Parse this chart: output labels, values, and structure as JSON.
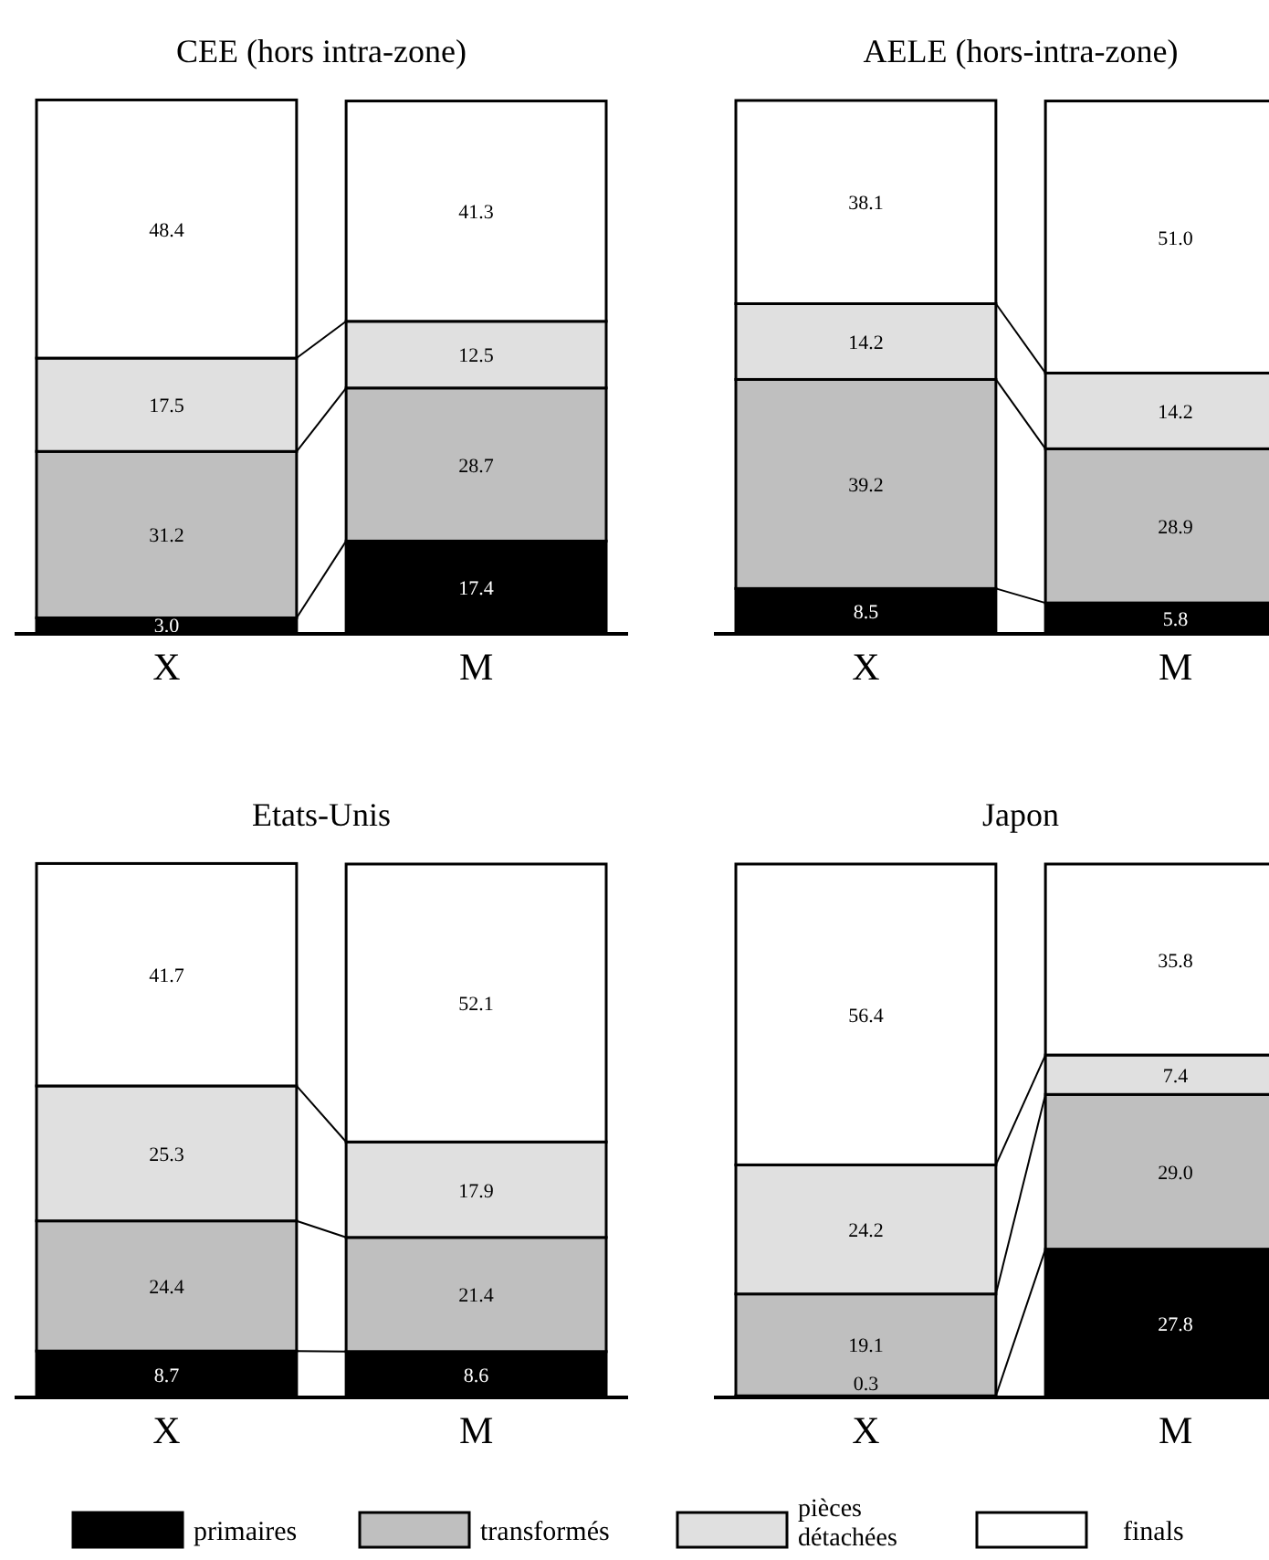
{
  "chart_data": [
    {
      "type": "bar",
      "title": "CEE (hors intra-zone)",
      "categories": [
        "X",
        "M"
      ],
      "stacked": true,
      "ylim": [
        0,
        100
      ],
      "tick_labels": "x",
      "series": [
        {
          "color": "#000000",
          "values": [
            3.0,
            17.4
          ],
          "value_labels": [
            "3.0",
            "17.4"
          ]
        },
        {
          "color": "#bfbfbf",
          "values": [
            31.2,
            28.7
          ],
          "value_labels": [
            "31.2",
            "28.7"
          ]
        },
        {
          "color": "#e0e0e0",
          "values": [
            17.5,
            12.5
          ],
          "value_labels": [
            "17.5",
            "12.5"
          ]
        },
        {
          "color": "#ffffff",
          "values": [
            48.4,
            41.3
          ],
          "value_labels": [
            "48.4",
            "41.3"
          ]
        }
      ]
    },
    {
      "type": "bar",
      "title": "AELE (hors-intra-zone)",
      "categories": [
        "X",
        "M"
      ],
      "stacked": true,
      "ylim": [
        0,
        100
      ],
      "tick_labels": "x",
      "series": [
        {
          "color": "#000000",
          "values": [
            8.5,
            5.8
          ],
          "value_labels": [
            "8.5",
            "5.8"
          ]
        },
        {
          "color": "#bfbfbf",
          "values": [
            39.2,
            28.9
          ],
          "value_labels": [
            "39.2",
            "28.9"
          ]
        },
        {
          "color": "#e0e0e0",
          "values": [
            14.2,
            14.2
          ],
          "value_labels": [
            "14.2",
            "14.2"
          ]
        },
        {
          "color": "#ffffff",
          "values": [
            38.1,
            51.0
          ],
          "value_labels": [
            "38.1",
            "51.0"
          ]
        }
      ]
    },
    {
      "type": "bar",
      "title": "Etats-Unis",
      "categories": [
        "X",
        "M"
      ],
      "stacked": true,
      "ylim": [
        0,
        100
      ],
      "tick_labels": "x",
      "series": [
        {
          "color": "#000000",
          "values": [
            8.7,
            8.6
          ],
          "value_labels": [
            "8.7",
            "8.6"
          ]
        },
        {
          "color": "#bfbfbf",
          "values": [
            24.4,
            21.4
          ],
          "value_labels": [
            "24.4",
            "21.4"
          ]
        },
        {
          "color": "#e0e0e0",
          "values": [
            25.3,
            17.9
          ],
          "value_labels": [
            "25.3",
            "17.9"
          ]
        },
        {
          "color": "#ffffff",
          "values": [
            41.7,
            52.1
          ],
          "value_labels": [
            "41.7",
            "52.1"
          ]
        }
      ]
    },
    {
      "type": "bar",
      "title": "Japon",
      "categories": [
        "X",
        "M"
      ],
      "stacked": true,
      "ylim": [
        0,
        100
      ],
      "tick_labels": "x",
      "legend": "bottom",
      "series": [
        {
          "name": "primaires",
          "color": "#000000",
          "values": [
            0.3,
            27.8
          ],
          "value_labels": [
            "0.3",
            "27.8"
          ]
        },
        {
          "name": "transformés",
          "color": "#bfbfbf",
          "values": [
            19.1,
            29.0
          ],
          "value_labels": [
            "19.1",
            "29.0"
          ]
        },
        {
          "name": "pièces détachées",
          "color": "#e0e0e0",
          "values": [
            24.2,
            7.4
          ],
          "value_labels": [
            "24.2",
            "7.4"
          ]
        },
        {
          "name": "finals",
          "color": "#ffffff",
          "values": [
            56.4,
            35.8
          ],
          "value_labels": [
            "56.4",
            "35.8"
          ]
        }
      ]
    }
  ]
}
